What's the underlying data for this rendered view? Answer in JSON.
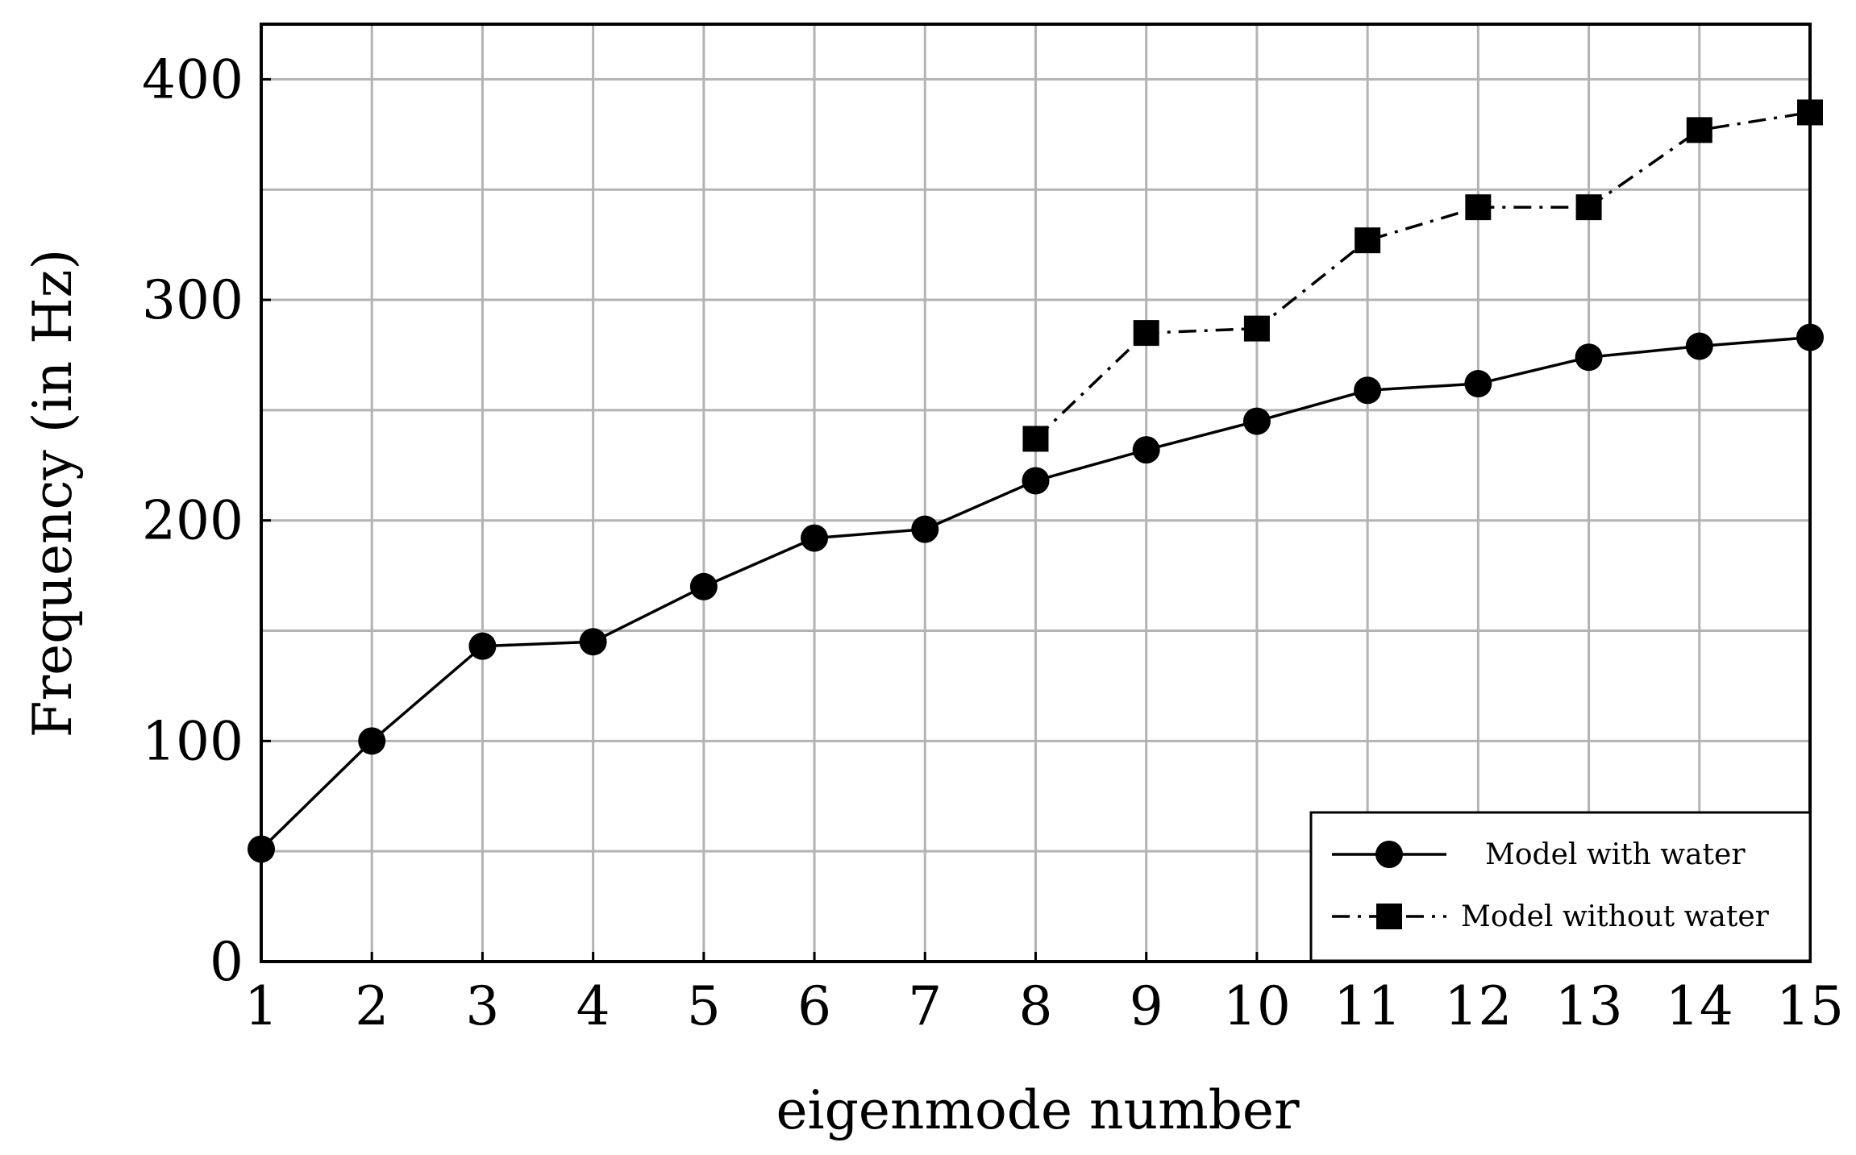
{
  "chart_data": {
    "type": "line",
    "title": "",
    "xlabel": "eigenmode number",
    "ylabel": "Frequency (in Hz)",
    "xlim": [
      1,
      15
    ],
    "ylim": [
      0,
      425
    ],
    "x_ticks": [
      1,
      2,
      3,
      4,
      5,
      6,
      7,
      8,
      9,
      10,
      11,
      12,
      13,
      14,
      15
    ],
    "y_ticks": [
      0,
      100,
      200,
      300,
      400
    ],
    "grid": true,
    "legend_position": "bottom-right",
    "series": [
      {
        "name": "Model with water",
        "marker": "circle",
        "line_style": "solid",
        "color": "#000000",
        "x": [
          1,
          2,
          3,
          4,
          5,
          6,
          7,
          8,
          9,
          10,
          11,
          12,
          13,
          14,
          15
        ],
        "y": [
          51,
          100,
          143,
          145,
          170,
          192,
          196,
          218,
          232,
          245,
          259,
          262,
          274,
          279,
          283
        ]
      },
      {
        "name": "Model without water",
        "marker": "square",
        "line_style": "dash-dot",
        "color": "#000000",
        "x": [
          8,
          9,
          10,
          11,
          12,
          13,
          14,
          15
        ],
        "y": [
          237,
          285,
          287,
          327,
          342,
          342,
          377,
          385
        ]
      }
    ]
  }
}
